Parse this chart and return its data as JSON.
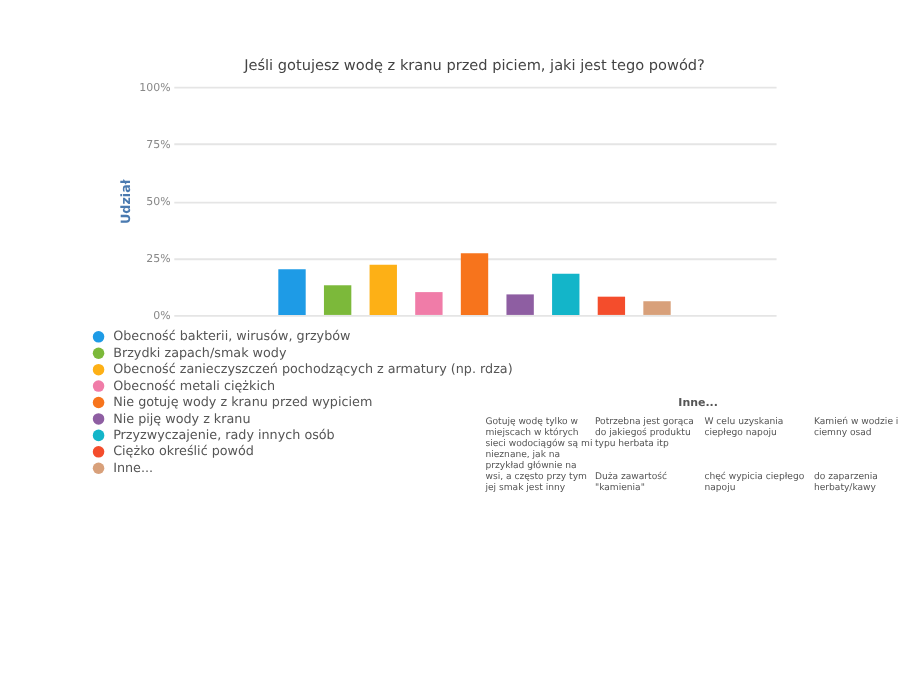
{
  "chart_data": {
    "type": "bar",
    "title": "Jeśli gotujesz wodę z kranu przed piciem, jaki jest tego powód?",
    "ylabel": "Udział",
    "categories": [
      null
    ],
    "series": [
      {
        "name": "Obecność bakterii, wirusów, grzybów",
        "color": "#1e9be6",
        "values": [
          20
        ]
      },
      {
        "name": "Brzydki zapach/smak wody",
        "color": "#7cb93a",
        "values": [
          13
        ]
      },
      {
        "name": "Obecność zanieczyszczeń pochodzących z armatury (np. rdza)",
        "color": "#fdb016",
        "values": [
          22
        ]
      },
      {
        "name": "Obecność metali ciężkich",
        "color": "#f07ca8",
        "values": [
          10
        ]
      },
      {
        "name": "Nie gotuję wody z kranu przed wypiciem",
        "color": "#f7741c",
        "values": [
          27
        ]
      },
      {
        "name": "Nie piję wody z kranu",
        "color": "#8e5ea2",
        "values": [
          9
        ]
      },
      {
        "name": "Przyzwyczajenie, rady innych osób",
        "color": "#13b5c9",
        "values": [
          18
        ]
      },
      {
        "name": "Ciężko określić powód",
        "color": "#f44d2c",
        "values": [
          8
        ]
      },
      {
        "name": "Inne...",
        "color": "#d8a07a",
        "values": [
          6
        ]
      }
    ],
    "ylim": [
      0,
      100
    ],
    "yticks": [
      {
        "value": 0,
        "label": "0%"
      },
      {
        "value": 25,
        "label": "25%"
      },
      {
        "value": 50,
        "label": "50%"
      },
      {
        "value": 75,
        "label": "75%"
      },
      {
        "value": 100,
        "label": "100%"
      }
    ],
    "grid": "y",
    "legend": "bottom",
    "tick_labels": "y",
    "annotations": [
      "Inne...",
      "Gotuję wodę tylko w miejscach w których sieci wodociągów są mi nieznane, jak na przykład głównie na wsi, a często przy tym jej smak jest inny",
      "Potrzebna jest gorąca do jakiegoś produktu typu herbata itp",
      "W celu uzyskania ciepłego napoju",
      "Kamień w wodzie i ciemny osad",
      "Duża zawartość \"kamienia\"",
      "chęć wypicia ciepłego napoju",
      "do zaparzenia herbaty/kawy"
    ]
  }
}
